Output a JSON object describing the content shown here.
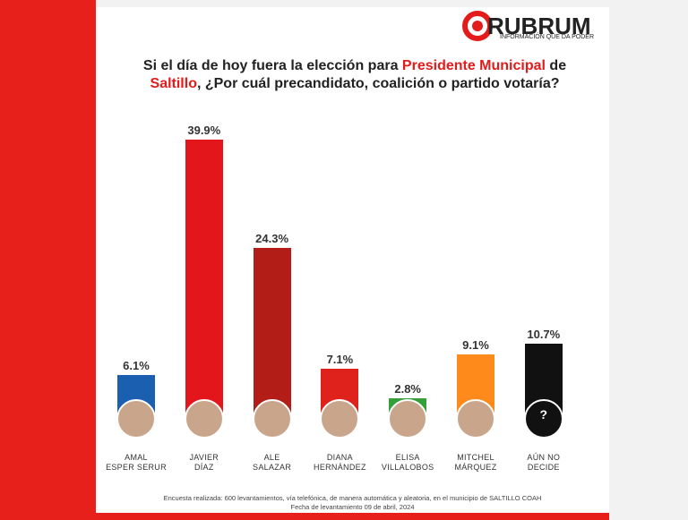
{
  "logo": {
    "name": "RUBRUM",
    "tagline": "INFORMACIÓN QUE DA PODER"
  },
  "chart_data": {
    "type": "bar",
    "title_parts": [
      "Si el día de hoy fuera la elección para",
      "Presidente Municipal",
      "de",
      "Saltillo",
      ", ¿Por cuál precandidato, coalición o partido votaría?"
    ],
    "categories": [
      "AMAL\nESPER SERUR",
      "JAVIER\nDÍAZ",
      "ALE\nSALAZAR",
      "DIANA\nHERNÁNDEZ",
      "ELISA\nVILLALOBOS",
      "MITCHEL\nMÁRQUEZ",
      "AÚN NO\nDECIDE"
    ],
    "values": [
      6.1,
      39.9,
      24.3,
      7.1,
      2.8,
      9.1,
      10.7
    ],
    "value_labels": [
      "6.1%",
      "39.9%",
      "24.3%",
      "7.1%",
      "2.8%",
      "9.1%",
      "10.7%"
    ],
    "colors": [
      "#1b5fb0",
      "#e2161b",
      "#b21d17",
      "#e0221d",
      "#35a03a",
      "#ff8a1c",
      "#111111"
    ],
    "unknown_marker": "?"
  },
  "footer": {
    "note": "Encuesta realizada: 600 levantamientos, vía telefónica, de manera automática y aleatoria, en el municipio de SALTILLO COAH",
    "date": "Fecha de levantamiento 09 de abril, 2024"
  }
}
